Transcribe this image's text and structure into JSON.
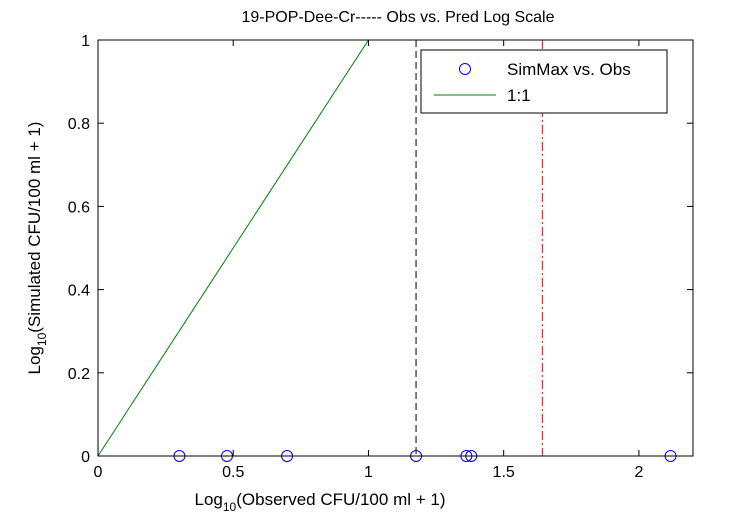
{
  "chart_data": {
    "type": "scatter",
    "title": "19-POP-Dee-Cr----- Obs vs. Pred Log Scale",
    "xlabel": {
      "prefix": "Log",
      "subscript": "10",
      "rest": "(Observed CFU/100 ml + 1)"
    },
    "ylabel": {
      "prefix": "Log",
      "subscript": "10",
      "rest": "(Simulated CFU/100 ml + 1)"
    },
    "xlim": [
      0,
      2.2
    ],
    "ylim": [
      0,
      1
    ],
    "xticks": [
      0,
      0.5,
      1,
      1.5,
      2
    ],
    "xtick_labels": [
      "0",
      "0.5",
      "1",
      "1.5",
      "2"
    ],
    "yticks": [
      0,
      0.2,
      0.4,
      0.6,
      0.8,
      1
    ],
    "ytick_labels": [
      "0",
      "0.2",
      "0.4",
      "0.6",
      "0.8",
      "1"
    ],
    "grid": false,
    "legend_position": "top-right",
    "series": [
      {
        "name": "SimMax vs. Obs",
        "kind": "markers",
        "marker": "circle-open",
        "color": "#0000ff",
        "x": [
          0.301,
          0.477,
          0.699,
          1.176,
          1.362,
          1.38,
          2.117
        ],
        "y": [
          0,
          0,
          0,
          0,
          0,
          0,
          0
        ]
      },
      {
        "name": "1:1",
        "kind": "line",
        "color": "#008000",
        "x": [
          0,
          1
        ],
        "y": [
          0,
          1
        ]
      }
    ],
    "reference_lines": [
      {
        "x": 1.176,
        "color": "#000000",
        "style": "dashed"
      },
      {
        "x": 1.643,
        "color": "#ff0000",
        "style": "dashdot"
      }
    ]
  }
}
